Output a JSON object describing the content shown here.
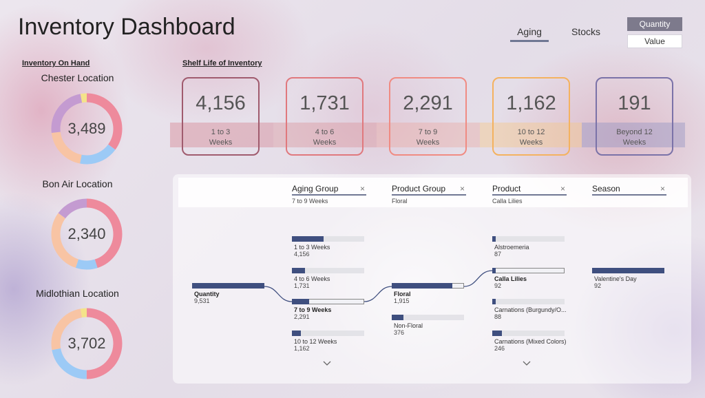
{
  "header": {
    "title": "Inventory Dashboard"
  },
  "nav": {
    "tabs": [
      {
        "label": "Aging",
        "active": true
      },
      {
        "label": "Stocks",
        "active": false
      }
    ]
  },
  "toggle": {
    "options": [
      "Quantity",
      "Value"
    ],
    "selected": "Quantity"
  },
  "on_hand": {
    "title": "Inventory On Hand",
    "locations": [
      {
        "name": "Chester Location",
        "total": "3,489",
        "segments": [
          0.35,
          0.18,
          0.2,
          0.24,
          0.03
        ]
      },
      {
        "name": "Bon Air Location",
        "total": "2,340",
        "segments": [
          0.45,
          0.1,
          0.3,
          0.15
        ]
      },
      {
        "name": "Midlothian Location",
        "total": "3,702",
        "segments": [
          0.5,
          0.22,
          0.25,
          0.03
        ]
      }
    ]
  },
  "shelf_life": {
    "title": "Shelf Life of Inventory",
    "buckets": [
      {
        "value": "4,156",
        "label_line1": "1 to 3",
        "label_line2": "Weeks"
      },
      {
        "value": "1,731",
        "label_line1": "4 to 6",
        "label_line2": "Weeks"
      },
      {
        "value": "2,291",
        "label_line1": "7 to 9",
        "label_line2": "Weeks"
      },
      {
        "value": "1,162",
        "label_line1": "10 to 12",
        "label_line2": "Weeks"
      },
      {
        "value": "191",
        "label_line1": "Beyond 12",
        "label_line2": "Weeks"
      }
    ]
  },
  "decomp": {
    "columns": [
      {
        "label": "Aging Group",
        "selected": "7 to 9 Weeks"
      },
      {
        "label": "Product Group",
        "selected": "Floral"
      },
      {
        "label": "Product",
        "selected": "Calla Lilies"
      },
      {
        "label": "Season",
        "selected": ""
      }
    ],
    "close_glyph": "×",
    "root": {
      "label": "Quantity",
      "value": "9,531",
      "fill": 1.0
    },
    "aging": [
      {
        "label": "1 to 3 Weeks",
        "value": "4,156",
        "fill": 0.44,
        "selected": false
      },
      {
        "label": "4 to 6 Weeks",
        "value": "1,731",
        "fill": 0.18,
        "selected": false
      },
      {
        "label": "7 to 9 Weeks",
        "value": "2,291",
        "fill": 0.24,
        "selected": true
      },
      {
        "label": "10 to 12 Weeks",
        "value": "1,162",
        "fill": 0.12,
        "selected": false
      }
    ],
    "product_group": [
      {
        "label": "Floral",
        "value": "1,915",
        "fill": 0.84,
        "selected": true
      },
      {
        "label": "Non-Floral",
        "value": "376",
        "fill": 0.16,
        "selected": false
      }
    ],
    "product": [
      {
        "label": "Alstroemeria",
        "value": "87",
        "fill": 0.05,
        "selected": false
      },
      {
        "label": "Calla Lilies",
        "value": "92",
        "fill": 0.05,
        "selected": true
      },
      {
        "label": "Carnations (Burgundy/O...",
        "value": "88",
        "fill": 0.05,
        "selected": false
      },
      {
        "label": "Carnations (Mixed Colors)",
        "value": "246",
        "fill": 0.13,
        "selected": false
      }
    ],
    "season": [
      {
        "label": "Valentine's Day",
        "value": "92",
        "fill": 1.0,
        "selected": false
      }
    ]
  },
  "colors": {
    "pink": "#ee8a9c",
    "blue": "#9ccaf6",
    "peach": "#f8c4a4",
    "lavender": "#c49bd1",
    "yellow": "#f4e38a",
    "bar": "#3f4f7f",
    "shelf_borders": [
      "#a05b6e",
      "#e0787d",
      "#f08b82",
      "#f4b25f",
      "#7a72a8"
    ],
    "shelf_bands": [
      "rgba(210,120,135,0.38)",
      "rgba(215,135,140,0.35)",
      "rgba(235,160,150,0.35)",
      "rgba(245,200,140,0.45)",
      "rgba(150,150,195,0.45)"
    ]
  }
}
